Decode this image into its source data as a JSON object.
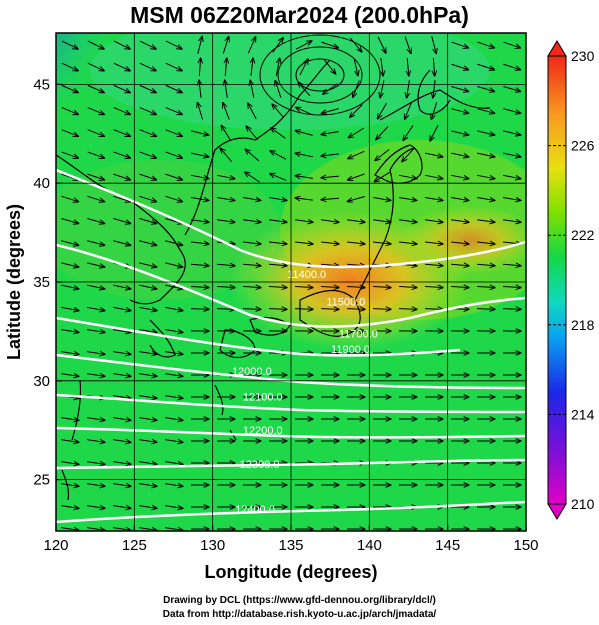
{
  "title": "MSM 06Z20Mar2024 (200.0hPa)",
  "chart_data": {
    "type": "heatmap",
    "xlabel": "Longitude (degrees)",
    "ylabel": "Latitude  (degrees)",
    "xlim": [
      120,
      150
    ],
    "ylim": [
      22.4,
      47.6
    ],
    "xticks": [
      "120",
      "125",
      "130",
      "135",
      "140",
      "145",
      "150"
    ],
    "yticks": [
      "25",
      "30",
      "35",
      "40",
      "45"
    ],
    "colorbar": {
      "range": [
        210,
        230
      ],
      "tick_labels": [
        "230",
        "226",
        "222",
        "218",
        "214",
        "210"
      ]
    },
    "contour_labels": [
      {
        "text": "11400.0",
        "lon": 136.0,
        "lat": 35.2
      },
      {
        "text": "11500.0",
        "lon": 138.5,
        "lat": 33.8
      },
      {
        "text": "11700.0",
        "lon": 139.3,
        "lat": 32.2
      },
      {
        "text": "11900.0",
        "lon": 138.8,
        "lat": 31.4
      },
      {
        "text": "12000.0",
        "lon": 132.5,
        "lat": 30.3
      },
      {
        "text": "12100.0",
        "lon": 133.2,
        "lat": 29.0
      },
      {
        "text": "12200.0",
        "lon": 133.2,
        "lat": 27.3
      },
      {
        "text": "12300.0",
        "lon": 133.0,
        "lat": 25.6
      },
      {
        "text": "12400.0",
        "lon": 132.7,
        "lat": 23.3
      }
    ],
    "grid": true
  },
  "credits": {
    "line1": "Drawing by DCL (https://www.gfd-dennou.org/library/dcl/)",
    "line2": "Data from http://database.rish.kyoto-u.ac.jp/arch/jmadata/"
  }
}
